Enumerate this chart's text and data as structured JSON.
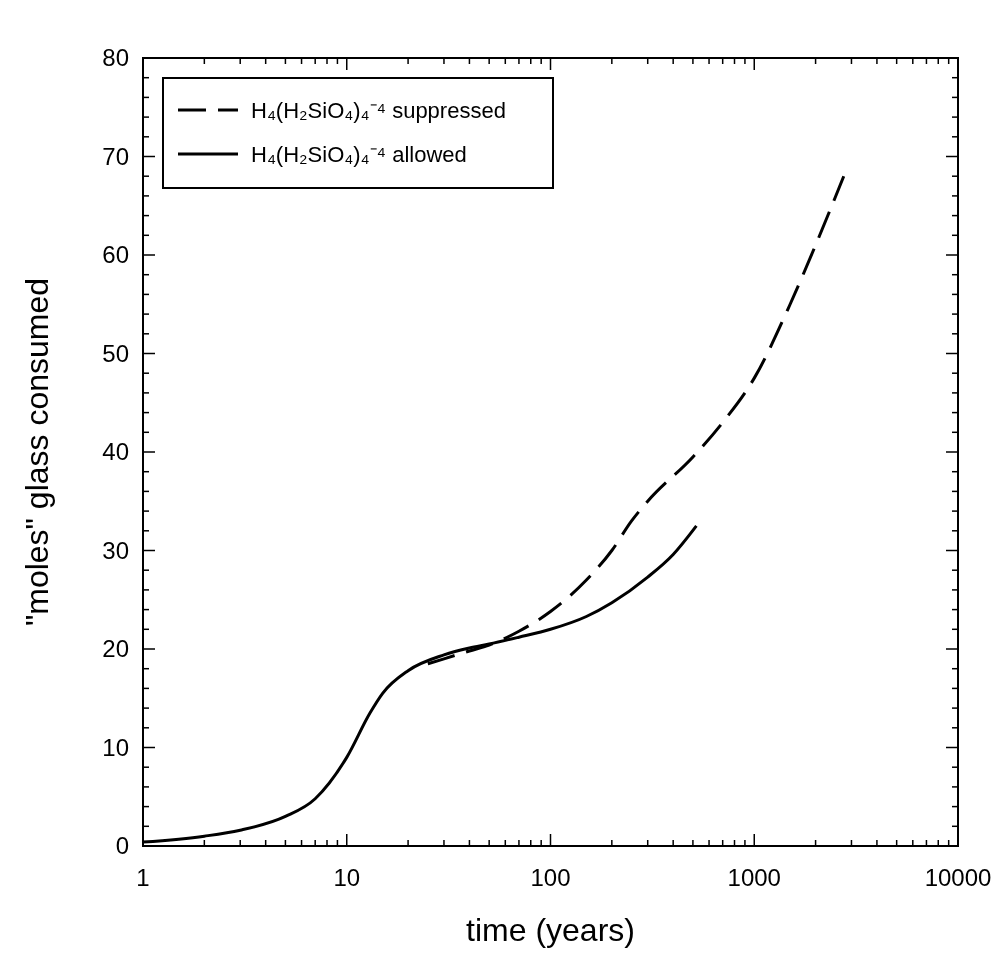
{
  "chart_data": {
    "type": "line",
    "xlabel": "time (years)",
    "ylabel": "\"moles\" glass consumed",
    "log": "x",
    "xlim": [
      1,
      10000
    ],
    "ylim": [
      0,
      80
    ],
    "xticks": [
      1,
      {
        "value": 2,
        "label": null
      },
      {
        "value": 3,
        "label": null
      },
      {
        "value": 4,
        "label": null
      },
      {
        "value": 5,
        "label": null
      },
      {
        "value": 6,
        "label": null
      },
      {
        "value": 7,
        "label": null
      },
      {
        "value": 8,
        "label": null
      },
      {
        "value": 9,
        "label": null
      },
      10,
      {
        "value": 20,
        "label": null
      },
      {
        "value": 30,
        "label": null
      },
      {
        "value": 40,
        "label": null
      },
      {
        "value": 50,
        "label": null
      },
      {
        "value": 60,
        "label": null
      },
      {
        "value": 70,
        "label": null
      },
      {
        "value": 80,
        "label": null
      },
      {
        "value": 90,
        "label": null
      },
      100,
      {
        "value": 200,
        "label": null
      },
      {
        "value": 300,
        "label": null
      },
      {
        "value": 400,
        "label": null
      },
      {
        "value": 500,
        "label": null
      },
      {
        "value": 600,
        "label": null
      },
      {
        "value": 700,
        "label": null
      },
      {
        "value": 800,
        "label": null
      },
      {
        "value": 900,
        "label": null
      },
      1000,
      {
        "value": 2000,
        "label": null
      },
      {
        "value": 3000,
        "label": null
      },
      {
        "value": 4000,
        "label": null
      },
      {
        "value": 5000,
        "label": null
      },
      {
        "value": 6000,
        "label": null
      },
      {
        "value": 7000,
        "label": null
      },
      {
        "value": 8000,
        "label": null
      },
      {
        "value": 9000,
        "label": null
      },
      10000
    ],
    "yticks": [
      0,
      {
        "value": 2,
        "label": null
      },
      {
        "value": 4,
        "label": null
      },
      {
        "value": 6,
        "label": null
      },
      {
        "value": 8,
        "label": null
      },
      10,
      {
        "value": 12,
        "label": null
      },
      {
        "value": 14,
        "label": null
      },
      {
        "value": 16,
        "label": null
      },
      {
        "value": 18,
        "label": null
      },
      20,
      {
        "value": 22,
        "label": null
      },
      {
        "value": 24,
        "label": null
      },
      {
        "value": 26,
        "label": null
      },
      {
        "value": 28,
        "label": null
      },
      30,
      {
        "value": 32,
        "label": null
      },
      {
        "value": 34,
        "label": null
      },
      {
        "value": 36,
        "label": null
      },
      {
        "value": 38,
        "label": null
      },
      40,
      {
        "value": 42,
        "label": null
      },
      {
        "value": 44,
        "label": null
      },
      {
        "value": 46,
        "label": null
      },
      {
        "value": 48,
        "label": null
      },
      50,
      {
        "value": 52,
        "label": null
      },
      {
        "value": 54,
        "label": null
      },
      {
        "value": 56,
        "label": null
      },
      {
        "value": 58,
        "label": null
      },
      60,
      {
        "value": 62,
        "label": null
      },
      {
        "value": 64,
        "label": null
      },
      {
        "value": 66,
        "label": null
      },
      {
        "value": 68,
        "label": null
      },
      70,
      {
        "value": 72,
        "label": null
      },
      {
        "value": 74,
        "label": null
      },
      {
        "value": 76,
        "label": null
      },
      {
        "value": 78,
        "label": null
      },
      80
    ],
    "grid": false,
    "legend": "top left",
    "marker": "none",
    "series": [
      {
        "name": "H₄(H₂SiO₄)₄⁻⁴ suppressed",
        "color": "#000000",
        "line_style": "dashed",
        "x": [
          25,
          30,
          40,
          50,
          70,
          100,
          150,
          200,
          250,
          300,
          500,
          700,
          1000,
          1500,
          2000,
          2750
        ],
        "values": [
          18.5,
          19,
          19.8,
          20.4,
          21.8,
          23.8,
          27,
          30,
          33,
          35,
          39.5,
          43,
          47.5,
          55,
          61,
          68
        ]
      },
      {
        "name": "H₄(H₂SiO₄)₄⁻⁴ allowed",
        "color": "#000000",
        "line_style": "solid",
        "x": [
          1,
          2,
          3,
          5,
          7,
          10,
          13,
          15,
          20,
          30,
          40,
          50,
          70,
          100,
          150,
          200,
          300,
          400,
          520
        ],
        "values": [
          0.4,
          1,
          1.6,
          3,
          4.8,
          9,
          13.5,
          15.5,
          17.8,
          19.4,
          20.1,
          20.5,
          21.2,
          22,
          23.3,
          24.7,
          27.3,
          29.6,
          32.5
        ]
      }
    ]
  }
}
